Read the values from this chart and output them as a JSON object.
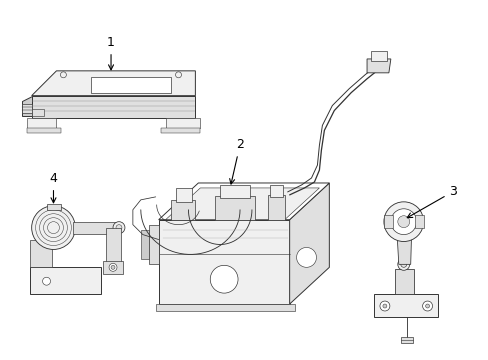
{
  "bg_color": "#ffffff",
  "line_color": "#333333",
  "line_width": 0.7,
  "fig_width": 4.89,
  "fig_height": 3.6,
  "dpi": 100
}
